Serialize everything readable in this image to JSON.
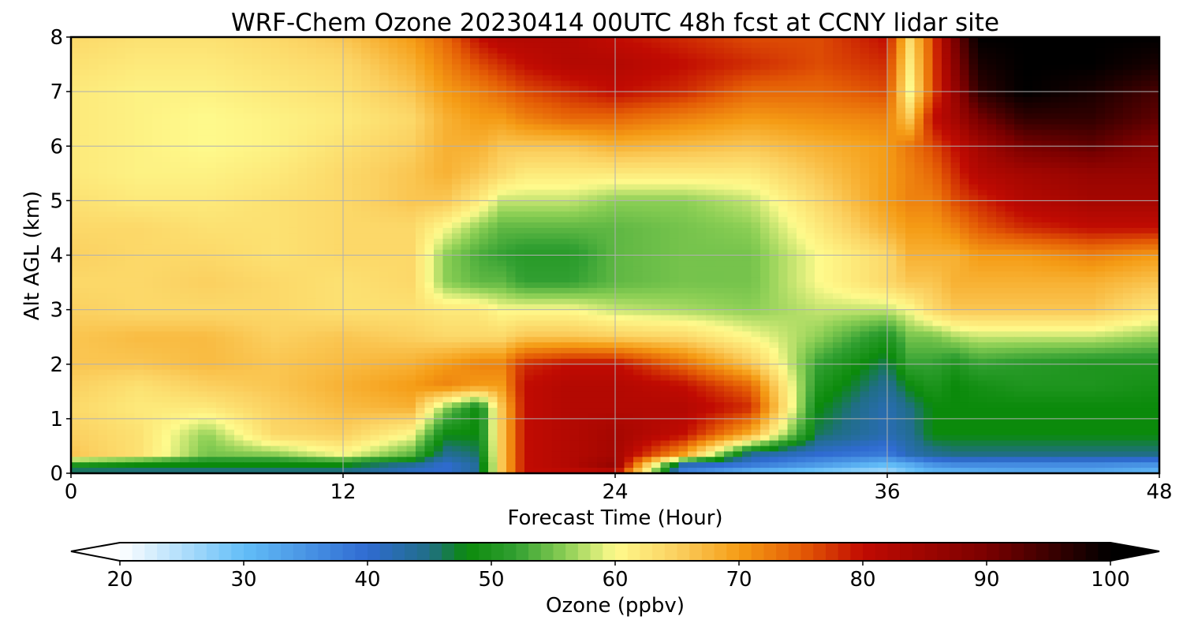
{
  "chart_data": {
    "type": "heatmap",
    "title": "WRF-Chem Ozone  20230414 00UTC 48h fcst at CCNY lidar site",
    "xlabel": "Forecast Time (Hour)",
    "ylabel": "Alt AGL (km)",
    "xlim": [
      0,
      48
    ],
    "ylim": [
      0,
      8
    ],
    "xticks": [
      0,
      12,
      24,
      36,
      48
    ],
    "yticks": [
      0,
      1,
      2,
      3,
      4,
      5,
      6,
      7,
      8
    ],
    "grid": true,
    "colorbar": {
      "label": "Ozone  (ppbv)",
      "min": 20,
      "max": 100,
      "ticks": [
        20,
        30,
        40,
        50,
        60,
        70,
        80,
        90,
        100
      ],
      "extend": "both",
      "orientation": "horizontal",
      "colors": [
        {
          "v": 20,
          "c": "#ffffff"
        },
        {
          "v": 30,
          "c": "#63bef8"
        },
        {
          "v": 40,
          "c": "#2f6bd1"
        },
        {
          "v": 45,
          "c": "#206e86"
        },
        {
          "v": 48,
          "c": "#0b8a0b"
        },
        {
          "v": 52,
          "c": "#32a032"
        },
        {
          "v": 56,
          "c": "#8ccf55"
        },
        {
          "v": 60,
          "c": "#fefa8c"
        },
        {
          "v": 65,
          "c": "#fbd060"
        },
        {
          "v": 70,
          "c": "#f59c15"
        },
        {
          "v": 75,
          "c": "#e45c05"
        },
        {
          "v": 80,
          "c": "#c10b02"
        },
        {
          "v": 90,
          "c": "#7a0000"
        },
        {
          "v": 100,
          "c": "#000000"
        }
      ]
    },
    "x": [
      0,
      3,
      6,
      9,
      12,
      15,
      16.5,
      18,
      19,
      20,
      22,
      24,
      27,
      30,
      33,
      36,
      37,
      38,
      39,
      40,
      42,
      45,
      48
    ],
    "y": [
      0,
      0.15,
      0.35,
      0.7,
      1.2,
      1.6,
      2.0,
      2.5,
      3.0,
      3.5,
      4.0,
      4.5,
      5.0,
      5.5,
      6.0,
      6.5,
      7.0,
      7.5,
      8.0
    ],
    "z": [
      [
        44,
        44,
        44,
        44,
        44,
        40,
        40,
        44,
        66,
        80,
        80,
        80,
        36,
        30,
        27,
        25,
        28,
        30,
        30,
        31,
        32,
        32,
        30
      ],
      [
        50,
        48,
        48,
        48,
        48,
        44,
        40,
        44,
        66,
        80,
        82,
        86,
        42,
        38,
        34,
        30,
        32,
        35,
        36,
        36,
        36,
        36,
        35
      ],
      [
        66,
        63,
        55,
        56,
        60,
        54,
        44,
        46,
        66,
        80,
        82,
        84,
        70,
        44,
        40,
        38,
        42,
        44,
        45,
        45,
        45,
        45,
        45
      ],
      [
        65,
        63,
        56,
        64,
        65,
        60,
        48,
        48,
        66,
        80,
        82,
        84,
        80,
        68,
        46,
        42,
        44,
        48,
        48,
        48,
        48,
        48,
        48
      ],
      [
        64,
        62,
        62,
        65,
        67,
        68,
        56,
        48,
        66,
        80,
        82,
        82,
        82,
        78,
        48,
        42,
        45,
        48,
        48,
        48,
        48,
        48,
        48
      ],
      [
        65,
        63,
        65,
        66,
        68,
        70,
        72,
        70,
        70,
        80,
        82,
        82,
        80,
        74,
        50,
        44,
        48,
        50,
        48,
        49,
        50,
        50,
        49
      ],
      [
        66,
        66,
        67,
        66,
        67,
        68,
        70,
        72,
        72,
        78,
        80,
        80,
        74,
        66,
        52,
        46,
        52,
        52,
        50,
        52,
        51,
        50,
        50
      ],
      [
        66,
        67,
        67,
        65,
        66,
        65,
        64,
        64,
        64,
        66,
        66,
        65,
        64,
        60,
        56,
        50,
        55,
        55,
        57,
        58,
        58,
        58,
        56
      ],
      [
        65,
        64,
        64,
        64,
        63,
        63,
        62,
        62,
        60,
        60,
        60,
        58,
        57,
        56,
        58,
        58,
        60,
        64,
        66,
        66,
        66,
        66,
        62
      ],
      [
        64,
        64,
        65,
        64,
        63,
        64,
        56,
        54,
        54,
        52,
        52,
        54,
        55,
        55,
        60,
        64,
        66,
        66,
        68,
        68,
        68,
        68,
        66
      ],
      [
        65,
        64,
        64,
        63,
        64,
        64,
        56,
        53,
        52,
        51,
        51,
        54,
        55,
        55,
        60,
        64,
        68,
        68,
        68,
        70,
        70,
        72,
        70
      ],
      [
        64,
        64,
        63,
        63,
        64,
        64,
        60,
        56,
        54,
        54,
        54,
        54,
        55,
        56,
        62,
        68,
        70,
        70,
        72,
        75,
        78,
        80,
        80
      ],
      [
        63,
        62,
        62,
        63,
        64,
        66,
        66,
        62,
        58,
        58,
        58,
        56,
        56,
        58,
        64,
        70,
        72,
        72,
        76,
        78,
        82,
        84,
        84
      ],
      [
        62,
        61,
        61,
        62,
        64,
        66,
        68,
        66,
        64,
        62,
        62,
        62,
        62,
        62,
        66,
        70,
        72,
        74,
        78,
        82,
        84,
        86,
        86
      ],
      [
        62,
        61,
        60,
        61,
        63,
        65,
        68,
        68,
        66,
        66,
        66,
        68,
        67,
        66,
        68,
        70,
        73,
        76,
        80,
        84,
        90,
        92,
        88
      ],
      [
        62,
        61,
        60,
        61,
        62,
        64,
        68,
        70,
        70,
        72,
        74,
        74,
        72,
        70,
        71,
        72,
        66,
        80,
        84,
        90,
        96,
        96,
        92
      ],
      [
        62,
        61,
        61,
        62,
        63,
        66,
        70,
        72,
        74,
        76,
        78,
        80,
        78,
        74,
        74,
        76,
        60,
        76,
        86,
        96,
        100,
        98,
        94
      ],
      [
        63,
        62,
        62,
        63,
        64,
        68,
        72,
        76,
        78,
        80,
        82,
        82,
        80,
        78,
        76,
        78,
        62,
        76,
        88,
        98,
        100,
        100,
        98
      ],
      [
        64,
        63,
        63,
        64,
        66,
        70,
        74,
        80,
        82,
        82,
        82,
        80,
        78,
        76,
        76,
        80,
        64,
        76,
        90,
        100,
        100,
        100,
        100
      ]
    ]
  }
}
